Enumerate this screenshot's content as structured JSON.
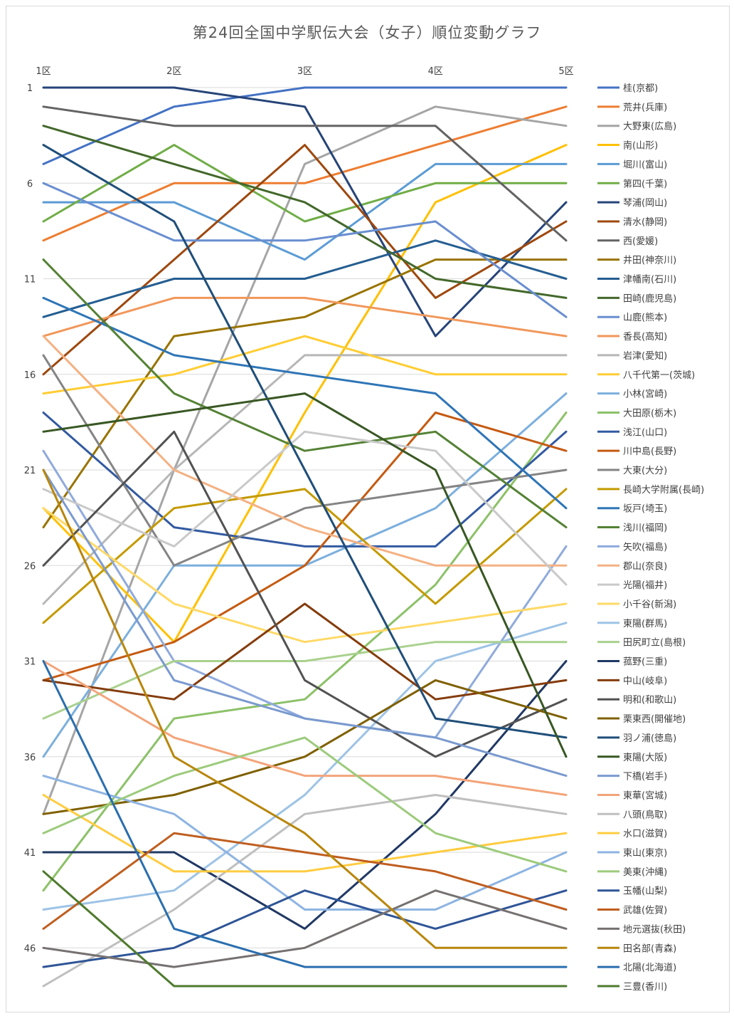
{
  "chart_data": {
    "type": "line",
    "title": "第24回全国中学駅伝大会（女子）順位変動グラフ",
    "categories": [
      "1区",
      "2区",
      "3区",
      "4区",
      "5区"
    ],
    "y_ticks": [
      "1",
      "6",
      "11",
      "16",
      "21",
      "26",
      "31",
      "36",
      "41",
      "46"
    ],
    "ylim": [
      1,
      48
    ],
    "y_inverted": true,
    "grid": true,
    "legend_position": "right",
    "series": [
      {
        "name": "桂(京都)",
        "color": "#4472C4",
        "values": [
          5,
          2,
          1,
          1,
          1
        ]
      },
      {
        "name": "荒井(兵庫)",
        "color": "#ED7D31",
        "values": [
          9,
          6,
          6,
          4,
          2
        ]
      },
      {
        "name": "大野東(広島)",
        "color": "#A5A5A5",
        "values": [
          39,
          21,
          5,
          2,
          3
        ]
      },
      {
        "name": "南(山形)",
        "color": "#FFC000",
        "values": [
          23,
          30,
          18,
          7,
          4
        ]
      },
      {
        "name": "堀川(富山)",
        "color": "#5B9BD5",
        "values": [
          7,
          7,
          10,
          5,
          5
        ]
      },
      {
        "name": "第四(千葉)",
        "color": "#70AD47",
        "values": [
          8,
          4,
          8,
          6,
          6
        ]
      },
      {
        "name": "琴浦(岡山)",
        "color": "#264478",
        "values": [
          1,
          1,
          2,
          14,
          7
        ]
      },
      {
        "name": "清水(静岡)",
        "color": "#9E480E",
        "values": [
          16,
          10,
          4,
          12,
          8
        ]
      },
      {
        "name": "西(愛媛)",
        "color": "#636363",
        "values": [
          2,
          3,
          3,
          3,
          9
        ]
      },
      {
        "name": "井田(神奈川)",
        "color": "#997300",
        "values": [
          24,
          14,
          13,
          10,
          10
        ]
      },
      {
        "name": "津幡南(石川)",
        "color": "#255E91",
        "values": [
          13,
          11,
          11,
          9,
          11
        ]
      },
      {
        "name": "田崎(鹿児島)",
        "color": "#43682B",
        "values": [
          3,
          5,
          7,
          11,
          12
        ]
      },
      {
        "name": "山鹿(熊本)",
        "color": "#698ED0",
        "values": [
          6,
          9,
          9,
          8,
          13
        ]
      },
      {
        "name": "香長(高知)",
        "color": "#F1975A",
        "values": [
          14,
          12,
          12,
          13,
          14
        ]
      },
      {
        "name": "岩津(愛知)",
        "color": "#B7B7B7",
        "values": [
          28,
          21,
          15,
          15,
          15
        ]
      },
      {
        "name": "八千代第一(茨城)",
        "color": "#FFCD33",
        "values": [
          17,
          16,
          14,
          16,
          16
        ]
      },
      {
        "name": "小林(宮崎)",
        "color": "#7CAFDD",
        "values": [
          36,
          26,
          26,
          23,
          17
        ]
      },
      {
        "name": "大田原(栃木)",
        "color": "#8CC168",
        "values": [
          43,
          34,
          33,
          27,
          18
        ]
      },
      {
        "name": "浅江(山口)",
        "color": "#335AA1",
        "values": [
          18,
          24,
          25,
          25,
          19
        ]
      },
      {
        "name": "川中島(長野)",
        "color": "#C55A11",
        "values": [
          32,
          30,
          26,
          18,
          20
        ]
      },
      {
        "name": "大東(大分)",
        "color": "#848484",
        "values": [
          15,
          26,
          23,
          22,
          21
        ]
      },
      {
        "name": "長崎大学附属(長崎)",
        "color": "#C49A00",
        "values": [
          29,
          23,
          22,
          28,
          22
        ]
      },
      {
        "name": "坂戸(埼玉)",
        "color": "#2E75B6",
        "values": [
          12,
          15,
          16,
          17,
          23
        ]
      },
      {
        "name": "浅川(福岡)",
        "color": "#548235",
        "values": [
          10,
          17,
          20,
          19,
          24
        ]
      },
      {
        "name": "矢吹(福島)",
        "color": "#8FAADC",
        "values": [
          20,
          31,
          34,
          35,
          25
        ]
      },
      {
        "name": "郡山(奈良)",
        "color": "#F4B183",
        "values": [
          14,
          21,
          24,
          26,
          26
        ]
      },
      {
        "name": "光陽(福井)",
        "color": "#C9C9C9",
        "values": [
          22,
          25,
          19,
          20,
          27
        ]
      },
      {
        "name": "小千谷(新潟)",
        "color": "#FFD966",
        "values": [
          23,
          28,
          30,
          29,
          28
        ]
      },
      {
        "name": "東陽(群馬)",
        "color": "#9DC3E6",
        "values": [
          44,
          43,
          38,
          31,
          29
        ]
      },
      {
        "name": "田尻町立(島根)",
        "color": "#A9D18E",
        "values": [
          34,
          31,
          31,
          30,
          30
        ]
      },
      {
        "name": "菰野(三重)",
        "color": "#203864",
        "values": [
          41,
          41,
          45,
          39,
          31
        ]
      },
      {
        "name": "中山(岐阜)",
        "color": "#843C0C",
        "values": [
          32,
          33,
          28,
          33,
          32
        ]
      },
      {
        "name": "明和(和歌山)",
        "color": "#525252",
        "values": [
          26,
          19,
          32,
          36,
          33
        ]
      },
      {
        "name": "栗東西(開催地)",
        "color": "#7F6000",
        "values": [
          39,
          38,
          36,
          32,
          34
        ]
      },
      {
        "name": "羽ノ浦(徳島)",
        "color": "#1F4E79",
        "values": [
          4,
          8,
          21,
          34,
          35
        ]
      },
      {
        "name": "東陽(大阪)",
        "color": "#385723",
        "values": [
          19,
          18,
          17,
          21,
          36
        ]
      },
      {
        "name": "下橋(岩手)",
        "color": "#7A9ACF",
        "values": [
          21,
          32,
          34,
          35,
          37
        ]
      },
      {
        "name": "東華(宮城)",
        "color": "#F3A47A",
        "values": [
          31,
          35,
          37,
          37,
          38
        ]
      },
      {
        "name": "八頭(鳥取)",
        "color": "#BFBFBF",
        "values": [
          48,
          44,
          39,
          38,
          39
        ]
      },
      {
        "name": "水口(滋賀)",
        "color": "#FFCC40",
        "values": [
          38,
          42,
          42,
          41,
          40
        ]
      },
      {
        "name": "東山(東京)",
        "color": "#8DB4E2",
        "values": [
          37,
          39,
          44,
          44,
          41
        ]
      },
      {
        "name": "美東(沖縄)",
        "color": "#9CCB7C",
        "values": [
          40,
          37,
          35,
          40,
          42
        ]
      },
      {
        "name": "玉幡(山梨)",
        "color": "#2F5597",
        "values": [
          47,
          46,
          43,
          45,
          43
        ]
      },
      {
        "name": "武雄(佐賀)",
        "color": "#BF5E1F",
        "values": [
          45,
          40,
          41,
          42,
          44
        ]
      },
      {
        "name": "地元選抜(秋田)",
        "color": "#767171",
        "values": [
          46,
          47,
          46,
          43,
          45
        ]
      },
      {
        "name": "田名部(青森)",
        "color": "#B8860B",
        "values": [
          21,
          36,
          40,
          46,
          46
        ]
      },
      {
        "name": "北陽(北海道)",
        "color": "#2A6EAE",
        "values": [
          31,
          45,
          47,
          47,
          47
        ]
      },
      {
        "name": "三豊(香川)",
        "color": "#4E7A2E",
        "values": [
          42,
          48,
          48,
          48,
          48
        ]
      }
    ]
  }
}
